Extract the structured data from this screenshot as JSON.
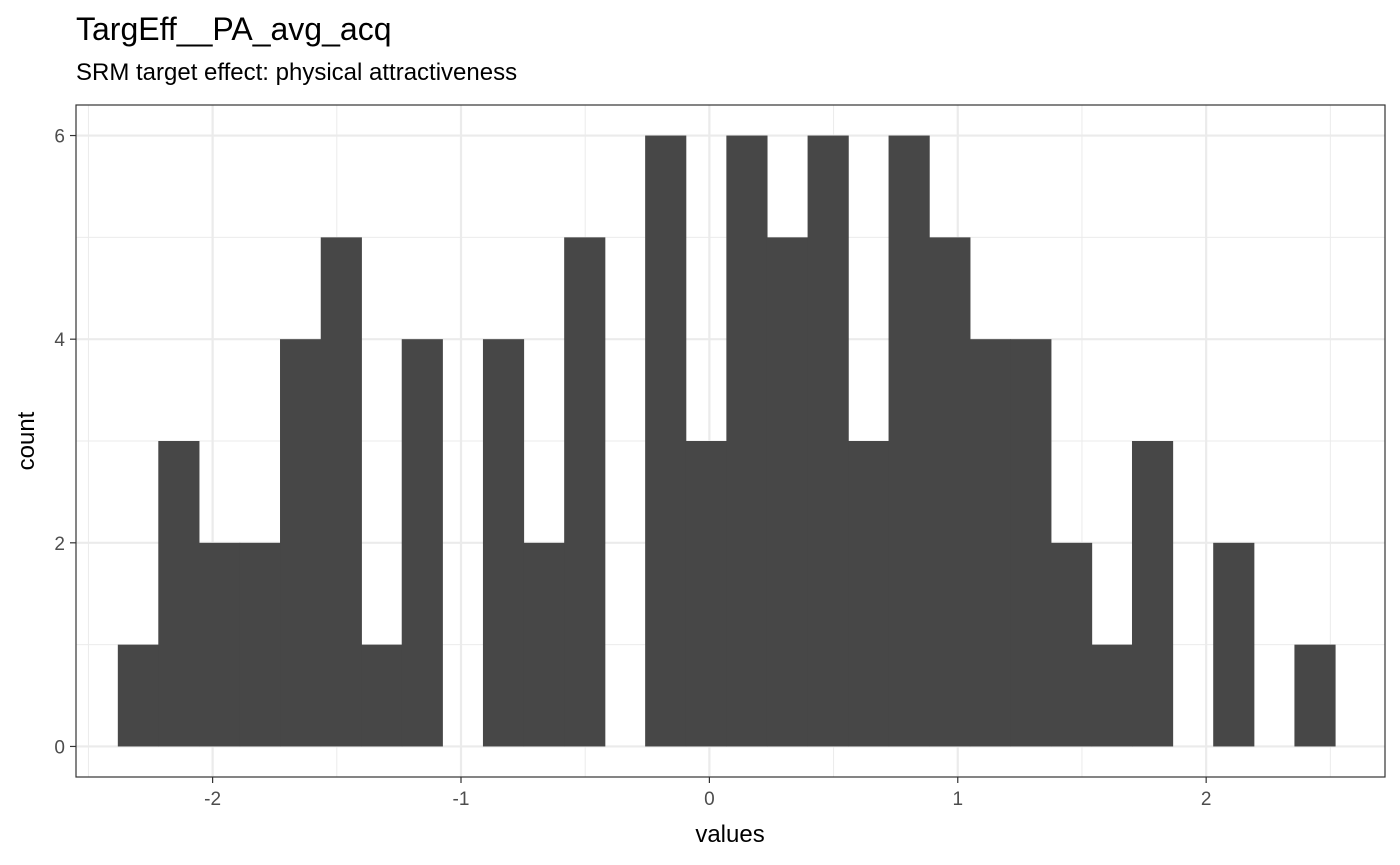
{
  "chart_data": {
    "type": "bar",
    "title": "TargEff__PA_avg_acq",
    "subtitle": "SRM target effect: physical attractiveness",
    "xlabel": "values",
    "ylabel": "count",
    "xlim": [
      -2.55,
      2.72
    ],
    "ylim": [
      -0.3,
      6.3
    ],
    "x_ticks": [
      -2,
      -1,
      0,
      1,
      2
    ],
    "x_tick_labels": [
      "-2",
      "-1",
      "0",
      "1",
      "2"
    ],
    "y_ticks": [
      0,
      2,
      4,
      6
    ],
    "y_tick_labels": [
      "0",
      "2",
      "4",
      "6"
    ],
    "bin_width": 0.1633,
    "bin_centers": [
      -2.3,
      -2.137,
      -1.973,
      -1.81,
      -1.647,
      -1.483,
      -1.32,
      -1.157,
      -0.993,
      -0.83,
      -0.667,
      -0.503,
      -0.34,
      -0.177,
      -0.013,
      0.15,
      0.313,
      0.477,
      0.64,
      0.803,
      0.967,
      1.13,
      1.293,
      1.457,
      1.62,
      1.783,
      1.947,
      2.11,
      2.273,
      2.437
    ],
    "values": [
      1,
      3,
      2,
      2,
      4,
      5,
      1,
      4,
      0,
      4,
      2,
      5,
      0,
      6,
      3,
      6,
      5,
      6,
      3,
      6,
      5,
      4,
      4,
      2,
      1,
      3,
      0,
      2,
      0,
      1
    ],
    "bar_color": "#474747",
    "panel_border_color": "#333333",
    "grid": true,
    "grid_color": "#ebebeb",
    "legend": "none"
  }
}
